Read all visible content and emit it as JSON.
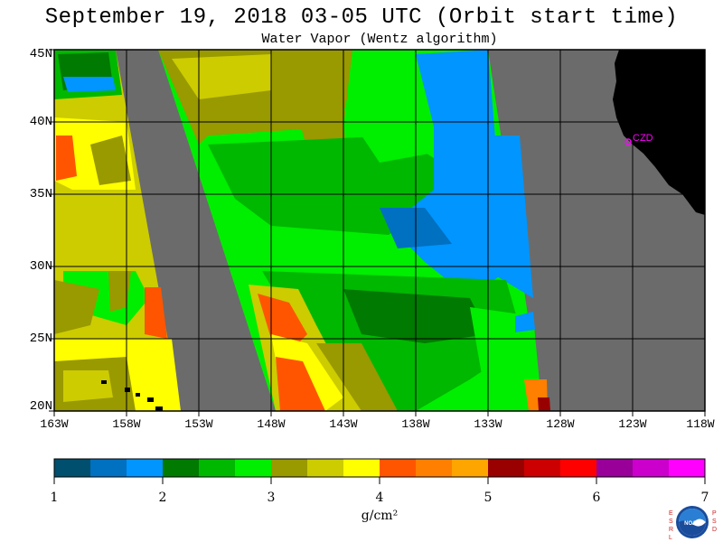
{
  "title": "September 19, 2018  03-05 UTC  (Orbit start time)",
  "subtitle": "Water Vapor (Wentz algorithm)",
  "map": {
    "lat_labels": [
      "45N",
      "40N",
      "35N",
      "30N",
      "25N",
      "20N"
    ],
    "lon_labels": [
      "163W",
      "158W",
      "153W",
      "148W",
      "143W",
      "138W",
      "133W",
      "128W",
      "123W",
      "118W"
    ],
    "station_label": "CZD",
    "land_color": "#000000",
    "nodata_color": "#6b6b6b",
    "station_color": "#ff00ff"
  },
  "colorbar": {
    "ticks": [
      "1",
      "2",
      "3",
      "4",
      "5",
      "6",
      "7"
    ],
    "unit": "g/cm²",
    "colors": [
      "#004f6e",
      "#0070c0",
      "#0095ff",
      "#007a00",
      "#00b800",
      "#00ee00",
      "#999900",
      "#cccc00",
      "#ffff00",
      "#ff5500",
      "#ff7f00",
      "#ffa500",
      "#990000",
      "#cc0000",
      "#ff0000",
      "#990099",
      "#cc00cc",
      "#ff00ff"
    ]
  },
  "logo": {
    "left_letters": "E S R L",
    "right_letters": "P S D",
    "center_text": "NOAA"
  }
}
